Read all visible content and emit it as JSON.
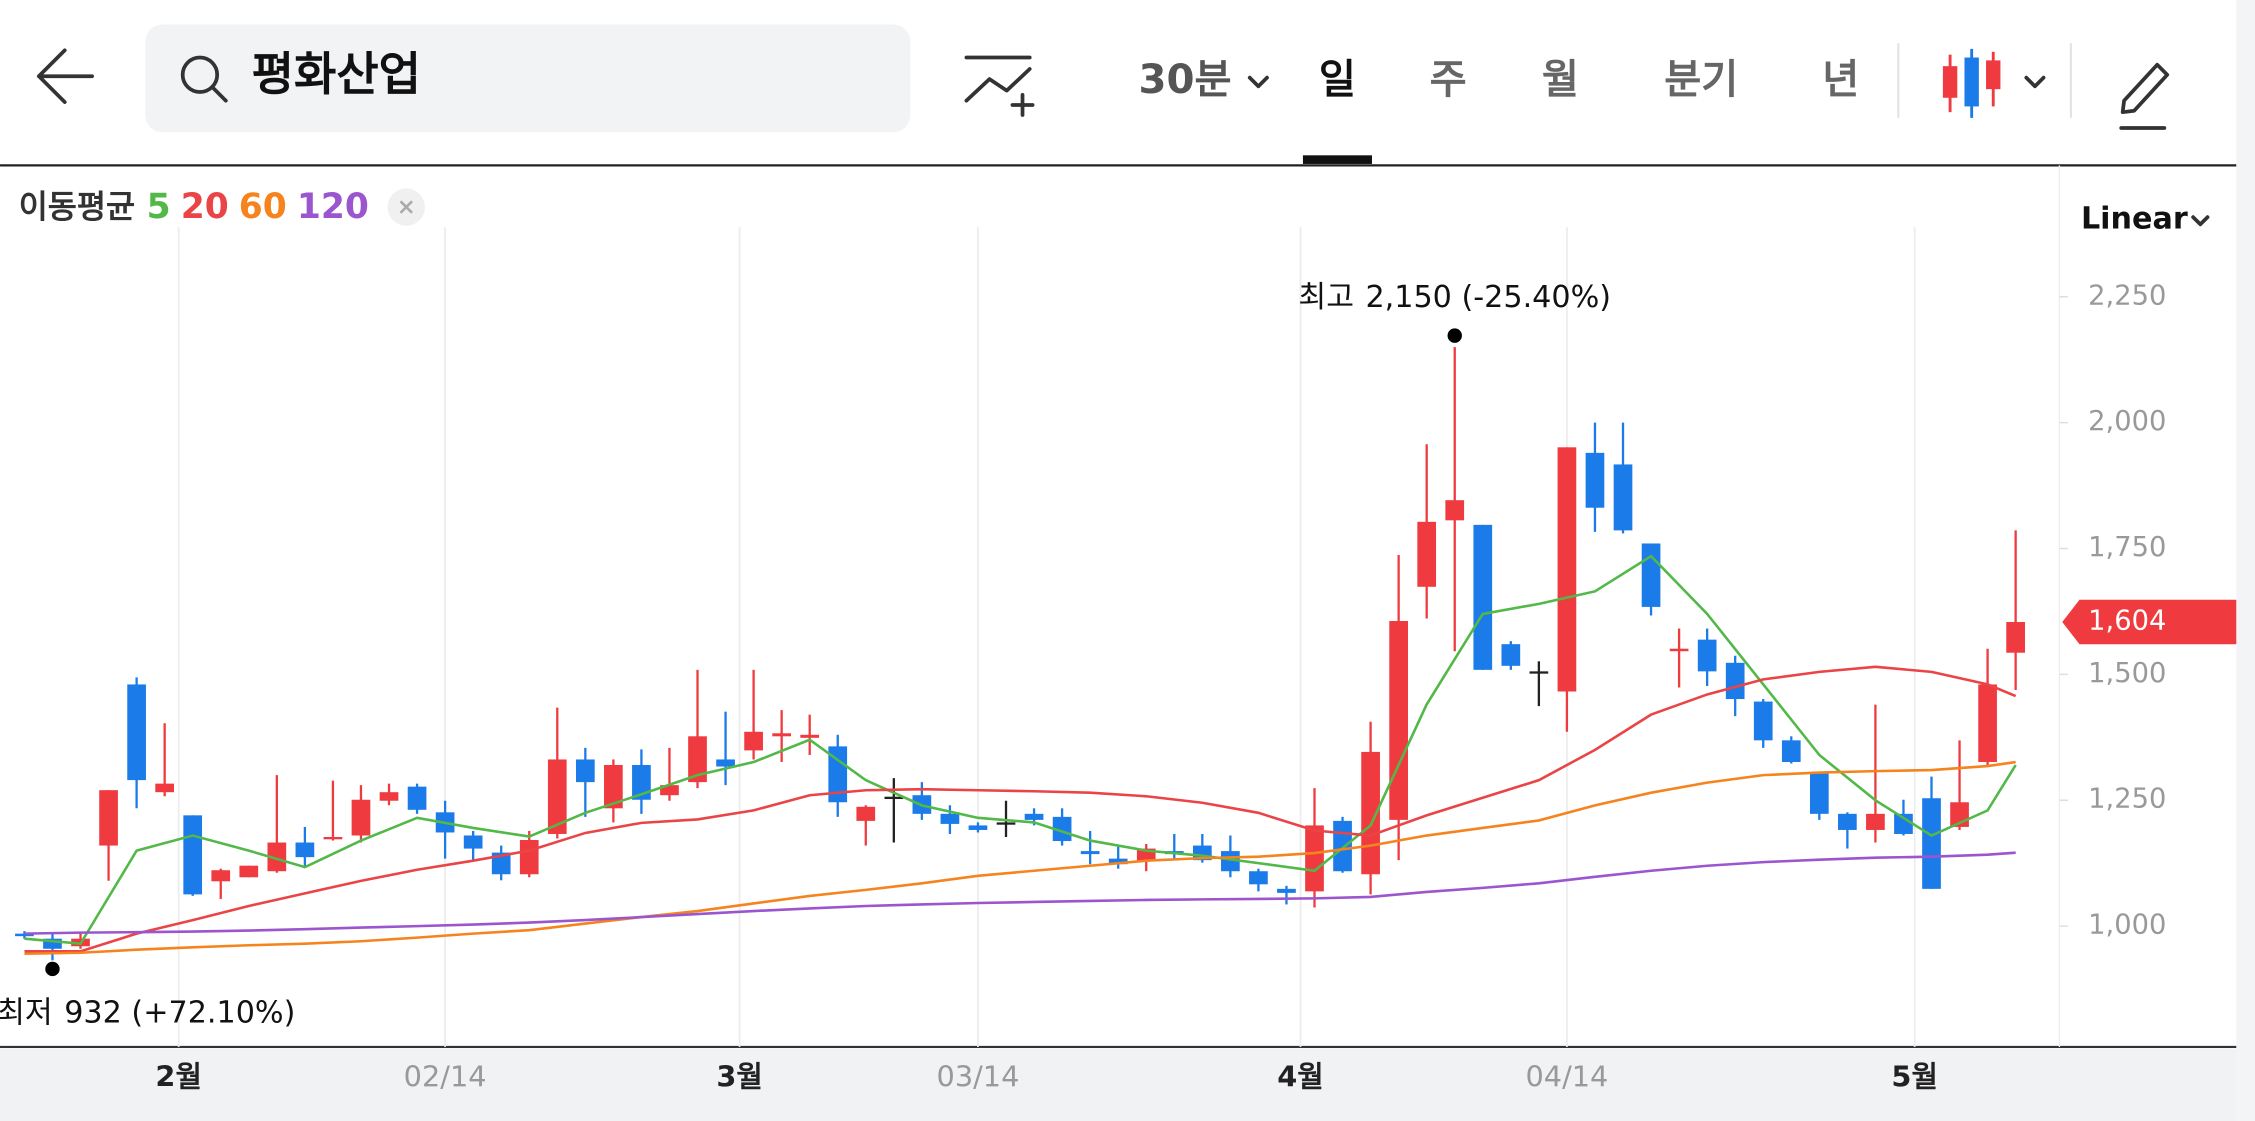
{
  "header": {
    "search": "평화산업",
    "interval": "30분",
    "tabs": [
      "일",
      "주",
      "월",
      "분기",
      "년"
    ],
    "active_tab": 0
  },
  "chart_data": {
    "type": "candlestick",
    "open": [
      985,
      975,
      960,
      1160,
      1480,
      1266,
      1220,
      1089,
      1097,
      1109,
      1166,
      1174,
      1180,
      1249,
      1277,
      1226,
      1180,
      1146,
      1103,
      1183,
      1331,
      1234,
      1320,
      1260,
      1286,
      1331,
      1349,
      1377,
      1374,
      1357,
      1209,
      1257,
      1260,
      1223,
      1200,
      1206,
      1223,
      1217,
      1149,
      1134,
      1129,
      1149,
      1160,
      1149,
      1109,
      1074,
      1069,
      1209,
      1103,
      1211,
      1674,
      1806,
      1797,
      1560,
      1506,
      1466,
      1940,
      1917,
      1760,
      1546,
      1569,
      1523,
      1446,
      1369,
      1303,
      1223,
      1191,
      1223,
      1254,
      1197,
      1326,
      1543
    ],
    "high": [
      990,
      985,
      985,
      1270,
      1494,
      1403,
      1220,
      1114,
      1120,
      1300,
      1197,
      1289,
      1280,
      1283,
      1283,
      1249,
      1189,
      1160,
      1189,
      1434,
      1354,
      1331,
      1351,
      1354,
      1509,
      1426,
      1509,
      1429,
      1420,
      1380,
      1240,
      1294,
      1286,
      1240,
      1206,
      1249,
      1234,
      1234,
      1189,
      1160,
      1163,
      1183,
      1183,
      1180,
      1114,
      1080,
      1274,
      1217,
      1406,
      1737,
      1957,
      2150,
      1797,
      1566,
      1526,
      1951,
      2000,
      2000,
      1760,
      1591,
      1591,
      1537,
      1451,
      1377,
      1303,
      1226,
      1440,
      1251,
      1297,
      1369,
      1551,
      1786
    ],
    "low": [
      975,
      932,
      955,
      1090,
      1234,
      1258,
      1060,
      1054,
      1097,
      1106,
      1117,
      1170,
      1166,
      1240,
      1223,
      1134,
      1131,
      1091,
      1097,
      1174,
      1217,
      1206,
      1223,
      1249,
      1274,
      1280,
      1331,
      1326,
      1340,
      1217,
      1160,
      1166,
      1211,
      1183,
      1186,
      1177,
      1200,
      1160,
      1123,
      1114,
      1109,
      1134,
      1126,
      1097,
      1069,
      1043,
      1037,
      1106,
      1063,
      1131,
      1611,
      1546,
      1509,
      1509,
      1437,
      1386,
      1783,
      1780,
      1617,
      1474,
      1477,
      1417,
      1354,
      1323,
      1211,
      1154,
      1166,
      1180,
      1074,
      1191,
      1320,
      1469
    ],
    "close": [
      980,
      955,
      975,
      1270,
      1290,
      1283,
      1063,
      1111,
      1120,
      1166,
      1137,
      1177,
      1251,
      1266,
      1231,
      1186,
      1154,
      1103,
      1171,
      1331,
      1286,
      1320,
      1251,
      1280,
      1377,
      1317,
      1386,
      1383,
      1380,
      1246,
      1237,
      1257,
      1223,
      1203,
      1191,
      1206,
      1211,
      1169,
      1143,
      1123,
      1154,
      1143,
      1131,
      1109,
      1083,
      1066,
      1200,
      1109,
      1346,
      1606,
      1803,
      1846,
      1509,
      1517,
      1506,
      1951,
      1831,
      1786,
      1634,
      1551,
      1506,
      1451,
      1369,
      1326,
      1223,
      1191,
      1223,
      1183,
      1074,
      1246,
      1480,
      1604
    ],
    "up_color": "#ef3b3f",
    "down_color": "#1b7be9",
    "flat_color": "#222222",
    "xlim": [
      -0.87,
      72.56
    ],
    "xticks": [
      {
        "value": 5.5,
        "label": "2월"
      },
      {
        "value": 15,
        "label": "02/14"
      },
      {
        "value": 25.5,
        "label": "3월"
      },
      {
        "value": 34,
        "label": "03/14"
      },
      {
        "value": 45.5,
        "label": "4월"
      },
      {
        "value": 55,
        "label": "04/14"
      },
      {
        "value": 67.4,
        "label": "5월"
      }
    ],
    "ylim": [
      760,
      2511
    ],
    "yticks": [
      {
        "value": 1000,
        "label": "1,000"
      },
      {
        "value": 1250,
        "label": "1,250"
      },
      {
        "value": 1500,
        "label": "1,500"
      },
      {
        "value": 1750,
        "label": "1,750"
      },
      {
        "value": 2000,
        "label": "2,000"
      },
      {
        "value": 2250,
        "label": "2,250"
      }
    ],
    "grid_x": true,
    "scale_label": "Linear",
    "overlay_title": "이동평균",
    "overlays": [
      {
        "name": "5",
        "color": "#52b848",
        "x": [
          0,
          2,
          4,
          6,
          8,
          10,
          12,
          14,
          16,
          18,
          20,
          22,
          24,
          26,
          28,
          30,
          32,
          34,
          36,
          38,
          40,
          42,
          44,
          46,
          48,
          50,
          52,
          54,
          56,
          58,
          60,
          62,
          64,
          66,
          68,
          70,
          71
        ],
        "values": [
          975,
          965,
          1150,
          1180,
          1150,
          1117,
          1170,
          1215,
          1195,
          1178,
          1225,
          1262,
          1300,
          1326,
          1370,
          1290,
          1240,
          1215,
          1206,
          1170,
          1150,
          1140,
          1125,
          1110,
          1200,
          1440,
          1620,
          1640,
          1665,
          1735,
          1620,
          1480,
          1340,
          1250,
          1180,
          1230,
          1320
        ]
      },
      {
        "name": "20",
        "color": "#ea4446",
        "x": [
          0,
          2,
          4,
          6,
          8,
          10,
          12,
          14,
          16,
          18,
          20,
          22,
          24,
          26,
          28,
          30,
          32,
          34,
          36,
          38,
          40,
          42,
          44,
          46,
          48,
          50,
          52,
          54,
          56,
          58,
          60,
          62,
          64,
          66,
          68,
          70,
          71
        ],
        "values": [
          950,
          950,
          985,
          1012,
          1040,
          1065,
          1090,
          1112,
          1130,
          1150,
          1185,
          1205,
          1212,
          1230,
          1260,
          1270,
          1272,
          1270,
          1268,
          1265,
          1258,
          1245,
          1225,
          1190,
          1180,
          1220,
          1255,
          1290,
          1350,
          1420,
          1460,
          1490,
          1505,
          1515,
          1505,
          1480,
          1457
        ]
      },
      {
        "name": "60",
        "color": "#f5841f",
        "x": [
          0,
          2,
          4,
          6,
          8,
          10,
          12,
          14,
          16,
          18,
          20,
          22,
          24,
          26,
          28,
          30,
          32,
          34,
          36,
          38,
          40,
          42,
          44,
          46,
          48,
          50,
          52,
          54,
          56,
          58,
          60,
          62,
          64,
          66,
          68,
          70,
          71
        ],
        "values": [
          945,
          947,
          953,
          958,
          962,
          965,
          970,
          977,
          985,
          992,
          1005,
          1018,
          1030,
          1045,
          1060,
          1072,
          1085,
          1100,
          1110,
          1120,
          1130,
          1135,
          1138,
          1145,
          1160,
          1180,
          1195,
          1210,
          1240,
          1265,
          1285,
          1300,
          1305,
          1308,
          1310,
          1318,
          1326
        ]
      },
      {
        "name": "120",
        "color": "#9b55cf",
        "x": [
          0,
          2,
          4,
          6,
          8,
          10,
          12,
          14,
          16,
          18,
          20,
          22,
          24,
          26,
          28,
          30,
          32,
          34,
          36,
          38,
          40,
          42,
          44,
          46,
          48,
          50,
          52,
          54,
          56,
          58,
          60,
          62,
          64,
          66,
          68,
          70,
          71
        ],
        "values": [
          985,
          987,
          988,
          989,
          991,
          994,
          997,
          1000,
          1003,
          1007,
          1012,
          1018,
          1024,
          1030,
          1035,
          1040,
          1043,
          1046,
          1048,
          1050,
          1052,
          1053,
          1054,
          1055,
          1058,
          1068,
          1076,
          1085,
          1098,
          1110,
          1120,
          1127,
          1132,
          1136,
          1138,
          1142,
          1146
        ]
      }
    ],
    "annotations": [
      {
        "title": "최고",
        "x": 51,
        "y": 2150,
        "label": "2,150 (-25.40%)"
      },
      {
        "title": "최저",
        "x": 1,
        "y": 932,
        "label": "932 (+72.10%)"
      }
    ],
    "last_price": {
      "value": 1604,
      "label": "1,604",
      "color": "#ef3b3f"
    }
  }
}
